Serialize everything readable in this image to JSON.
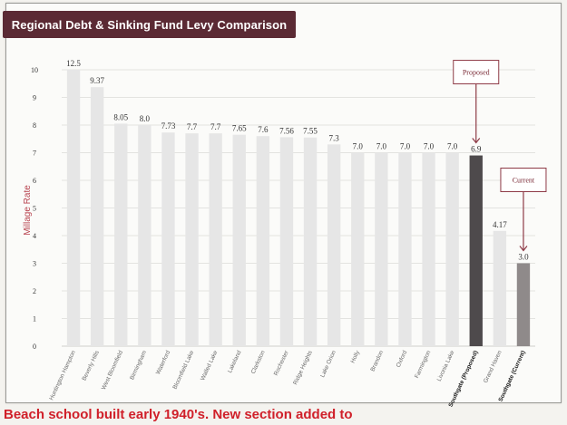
{
  "colors": {
    "title_bg": "#5b2a34",
    "bar_default": "#e6e6e6",
    "bar_proposed": "#4e4a4c",
    "bar_current": "#8f8a8a",
    "callout_border": "#8e3a46",
    "callout_text": "#7a2a36",
    "caption_text": "#d0202a",
    "axis_text": "#333333",
    "ylabel_text": "#b8434f"
  },
  "chart_data": {
    "type": "bar",
    "title": "Regional Debt & Sinking Fund Levy Comparison",
    "ylabel": "Millage Rate",
    "xlabel": "",
    "ylim": [
      0,
      10
    ],
    "yticks": [
      0,
      1,
      2,
      3,
      4,
      5,
      6,
      7,
      8,
      9,
      10
    ],
    "grid": true,
    "categories": [
      "Huntington Hampton",
      "Beverly Hills",
      "West Bloomfield",
      "Birmingham",
      "Waterford",
      "Bloomfield Lake",
      "Walled Lake",
      "Lakeland",
      "Clarkston",
      "Rochester",
      "Ridge Heights",
      "Lake Orion",
      "Holly",
      "Brandon",
      "Oxford",
      "Farmington",
      "Livonia Lake",
      "Southgate (Proposed)",
      "Grand Haven",
      "Southgate (Current)"
    ],
    "values": [
      12.5,
      9.37,
      8.05,
      8.0,
      7.73,
      7.7,
      7.7,
      7.65,
      7.6,
      7.56,
      7.55,
      7.3,
      7.0,
      7.0,
      7.0,
      7.0,
      7.0,
      6.9,
      4.17,
      3.0
    ],
    "value_labels": [
      "12.5",
      "9.37",
      "8.05",
      "8.0",
      "7.73",
      "7.7",
      "7.7",
      "7.65",
      "7.6",
      "7.56",
      "7.55",
      "7.3",
      "7.0",
      "7.0",
      "7.0",
      "7.0",
      "7.0",
      "6.9",
      "4.17",
      "3.0"
    ],
    "highlight": {
      "proposed_index": 17,
      "current_index": 19
    },
    "annotations": [
      {
        "text": "Proposed",
        "target_index": 17
      },
      {
        "text": "Current",
        "target_index": 19
      }
    ]
  },
  "caption": "Beach school built early 1940's.  New section added to"
}
